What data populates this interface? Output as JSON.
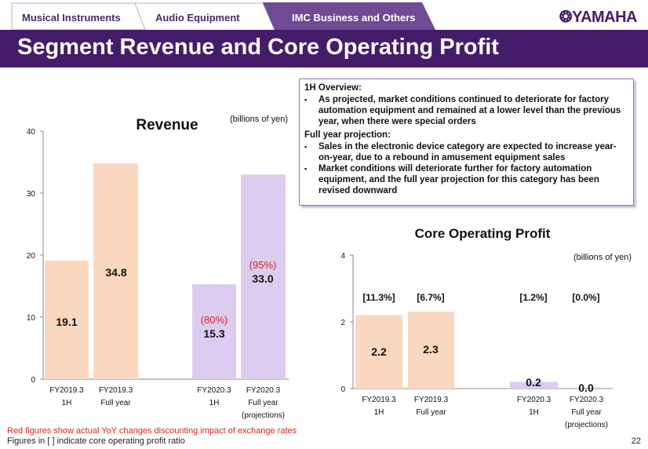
{
  "tabs": [
    {
      "label": "Musical  Instruments"
    },
    {
      "label": "Audio  Equipment"
    },
    {
      "label": "IMC  Business  and  Others"
    }
  ],
  "logo": "YAMAHA",
  "title": "Segment Revenue and Core Operating Profit",
  "overview": {
    "h1": "1H Overview:",
    "b1": "As  projected, market conditions continued to deteriorate for factory automation  equipment and remained at a  lower level than the previous year, when there were special orders",
    "h2": "Full year projection:",
    "b2": "Sales in the electronic device category are expected to increase year-on-year, due to a rebound in amusement equipment sales",
    "b3": "Market conditions will deteriorate further for factory automation equipment, and the full year projection for this category has been revised downward"
  },
  "colors": {
    "actual": "#f9d8bf",
    "projection": "#dccdf0",
    "red": "#e02020",
    "purple": "#451c69"
  },
  "chart_data": [
    {
      "type": "bar",
      "title": "Revenue",
      "unit": "(billions of yen)",
      "ylim": [
        0,
        40
      ],
      "yticks": [
        0,
        10,
        20,
        30,
        40
      ],
      "categories": [
        [
          "FY2019.3",
          "1H"
        ],
        [
          "FY2019.3",
          "Full year"
        ],
        [
          "FY2020.3",
          "1H"
        ],
        [
          "FY2020.3",
          "Full year",
          "(projections)"
        ]
      ],
      "values": [
        19.1,
        34.8,
        15.3,
        33.0
      ],
      "labels": [
        "19.1",
        "34.8",
        "15.3",
        "33.0"
      ],
      "annotations": [
        "",
        "",
        "(80%)",
        "(95%)"
      ]
    },
    {
      "type": "bar",
      "title": "Core Operating Profit",
      "unit": "(billions of yen)",
      "ylim": [
        0,
        4
      ],
      "yticks": [
        0,
        2,
        4
      ],
      "categories": [
        [
          "FY2019.3",
          "1H"
        ],
        [
          "FY2019.3",
          "Full year"
        ],
        [
          "FY2020.3",
          "1H"
        ],
        [
          "FY2020.3",
          "Full year",
          "(projections)"
        ]
      ],
      "values": [
        2.2,
        2.3,
        0.2,
        0.0
      ],
      "labels": [
        "2.2",
        "2.3",
        "0.2",
        "0.0"
      ],
      "annotations": [
        "[11.3%]",
        "[6.7%]",
        "[1.2%]",
        "[0.0%]"
      ]
    }
  ],
  "footer": {
    "note1": "Red figures show actual YoY changes discounting impact of exchange rates",
    "note2": "Figures in [ ] indicate core operating profit ratio",
    "page": "22"
  }
}
